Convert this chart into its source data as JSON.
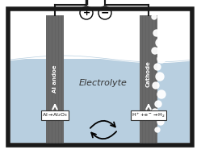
{
  "fig_width": 2.49,
  "fig_height": 1.91,
  "dpi": 100,
  "bg_color": "#ffffff",
  "tank_bg": "#b8cfe0",
  "tank_border": "#1a1a1a",
  "electrode_color": "#686868",
  "wire_color": "#1a1a1a",
  "bubble_color": "#ffffff",
  "label_anode": "Al andoe",
  "label_cathode": "Cathode",
  "label_electrolyte": "Electrolyte"
}
